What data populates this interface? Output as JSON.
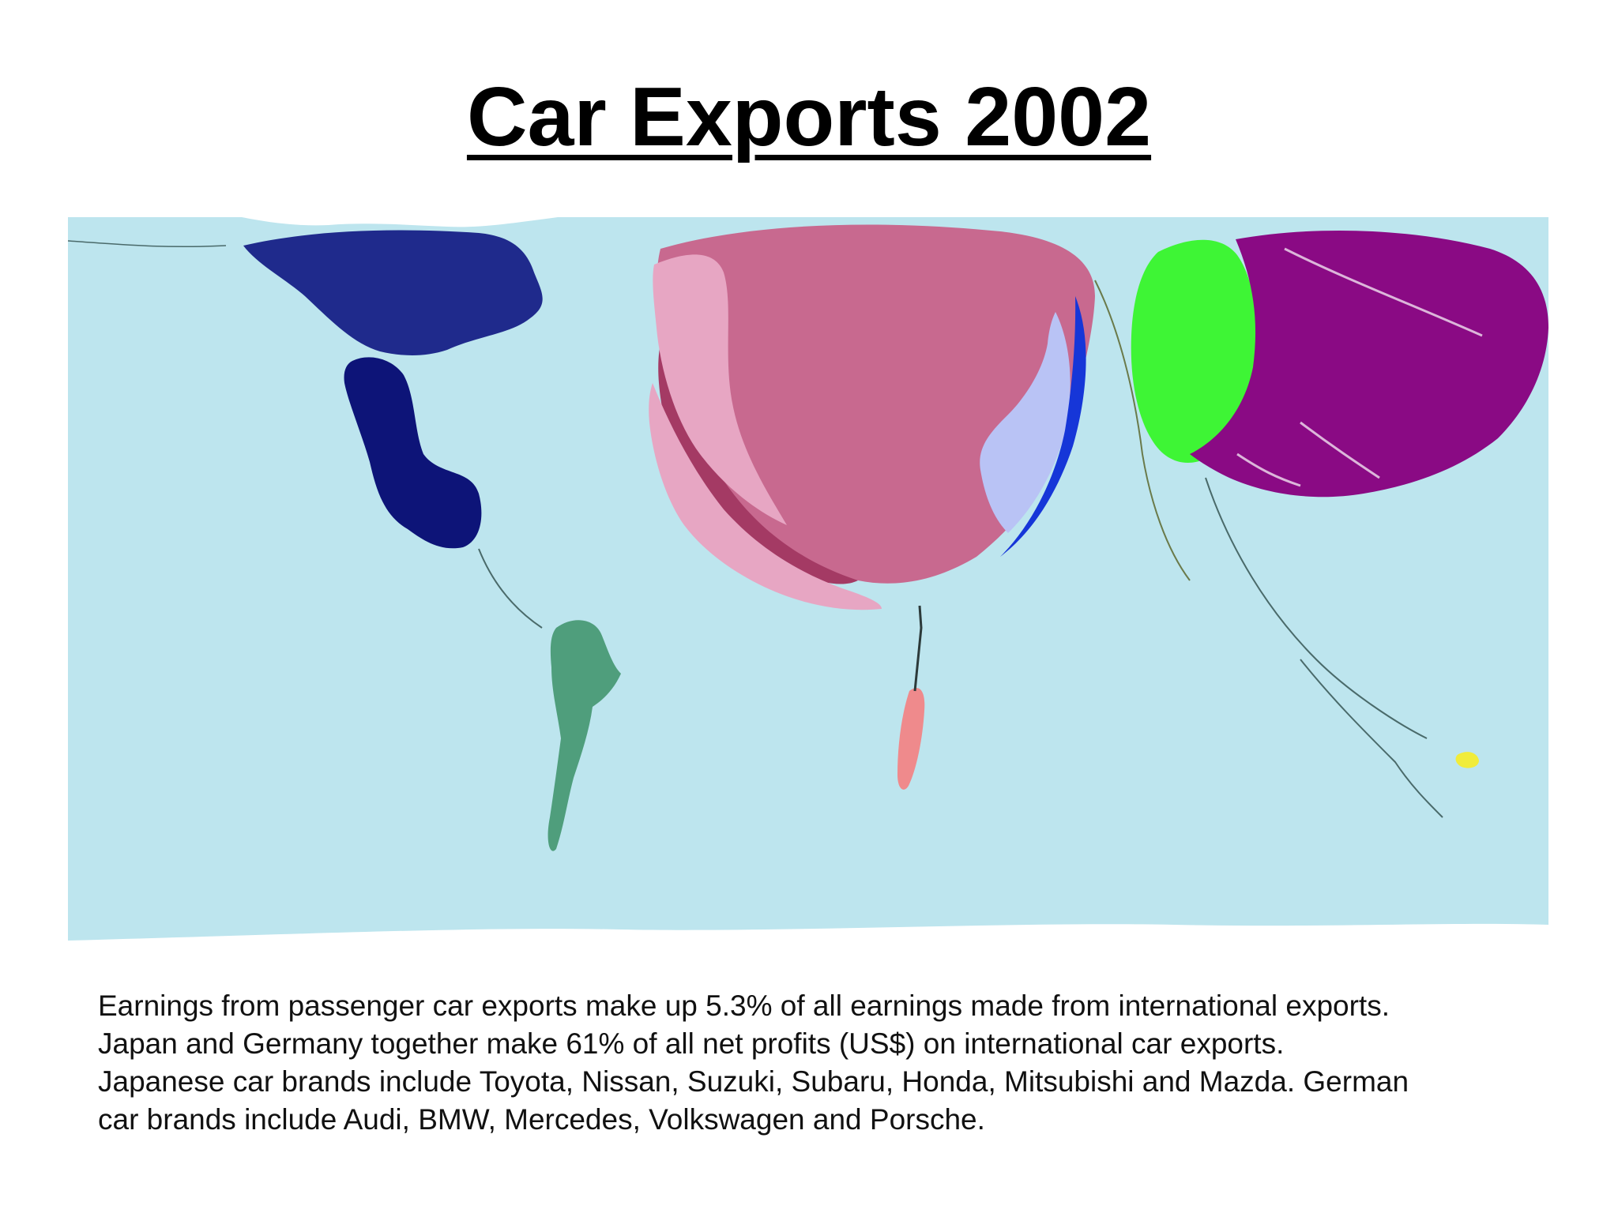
{
  "slide": {
    "title": "Car Exports 2002",
    "caption_lines": [
      "Earnings from passenger car exports make up 5.3% of all earnings made from international exports.",
      "Japan and Germany together make 61% of all net profits (US$) on international car exports.",
      "Japanese car brands include Toyota, Nissan, Suzuki, Subaru, Honda, Mitsubishi and Mazda. German",
      "car brands include Audi, BMW, Mercedes, Volkswagen and Porsche."
    ]
  },
  "map": {
    "ocean_color": "#bde5ee",
    "regions": [
      {
        "id": "north-america",
        "color": "#1f2a8c"
      },
      {
        "id": "mexico-central-america",
        "color": "#0d1478"
      },
      {
        "id": "south-america",
        "color": "#4f9e7c"
      },
      {
        "id": "western-europe",
        "color": "#c8698f"
      },
      {
        "id": "eastern-europe",
        "color": "#a43a64"
      },
      {
        "id": "southern-europe",
        "color": "#e7a6c3"
      },
      {
        "id": "northern-africa-europe-edge",
        "color": "#e7a6c3"
      },
      {
        "id": "central-europe-blue",
        "color": "#b9c3f5"
      },
      {
        "id": "africa",
        "color": "#ef8a8c"
      },
      {
        "id": "east-asia-china",
        "color": "#3ef535"
      },
      {
        "id": "japan",
        "color": "#8a0a84"
      },
      {
        "id": "oceania",
        "color": "#f1ec3a"
      }
    ]
  }
}
